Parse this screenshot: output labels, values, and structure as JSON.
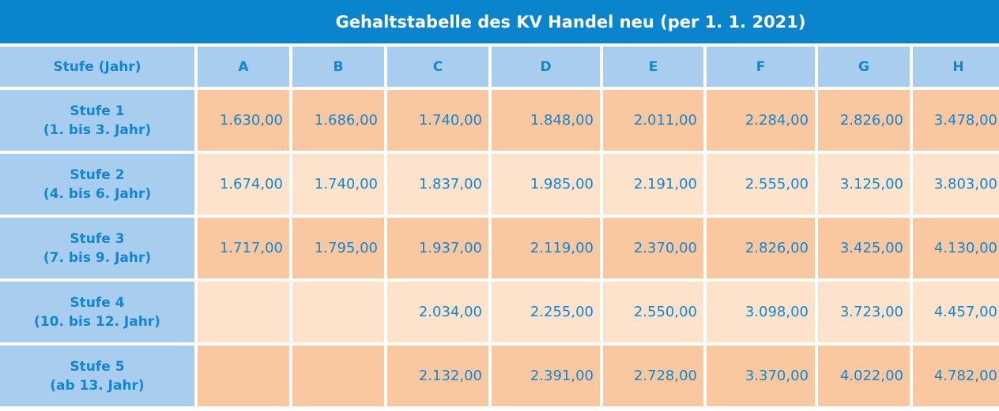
{
  "title": "Gehaltstabelle des KV Handel neu (per 1. 1. 2021)",
  "header": {
    "stufe_label": "Stufe (Jahr)",
    "columns": [
      "A",
      "B",
      "C",
      "D",
      "E",
      "F",
      "G",
      "H"
    ]
  },
  "rows": [
    {
      "name": "Stufe 1",
      "years": "(1. bis 3. Jahr)",
      "values": [
        "1.630,00",
        "1.686,00",
        "1.740,00",
        "1.848,00",
        "2.011,00",
        "2.284,00",
        "2.826,00",
        "3.478,00"
      ]
    },
    {
      "name": "Stufe 2",
      "years": "(4. bis 6. Jahr)",
      "values": [
        "1.674,00",
        "1.740,00",
        "1.837,00",
        "1.985,00",
        "2.191,00",
        "2.555,00",
        "3.125,00",
        "3.803,00"
      ]
    },
    {
      "name": "Stufe 3",
      "years": "(7. bis 9. Jahr)",
      "values": [
        "1.717,00",
        "1.795,00",
        "1.937,00",
        "2.119,00",
        "2.370,00",
        "2.826,00",
        "3.425,00",
        "4.130,00"
      ]
    },
    {
      "name": "Stufe 4",
      "years": "(10. bis 12. Jahr)",
      "values": [
        "",
        "",
        "2.034,00",
        "2.255,00",
        "2.550,00",
        "3.098,00",
        "3.723,00",
        "4.457,00"
      ]
    },
    {
      "name": "Stufe 5",
      "years": "(ab 13. Jahr)",
      "values": [
        "",
        "",
        "2.132,00",
        "2.391,00",
        "2.728,00",
        "3.370,00",
        "4.022,00",
        "4.782,00"
      ]
    }
  ],
  "colors": {
    "title_bg": "#0a84cc",
    "header_bg": "#a8cdee",
    "text": "#1286cf",
    "row_dark": "#fac8a0",
    "row_light": "#fde3cc"
  }
}
